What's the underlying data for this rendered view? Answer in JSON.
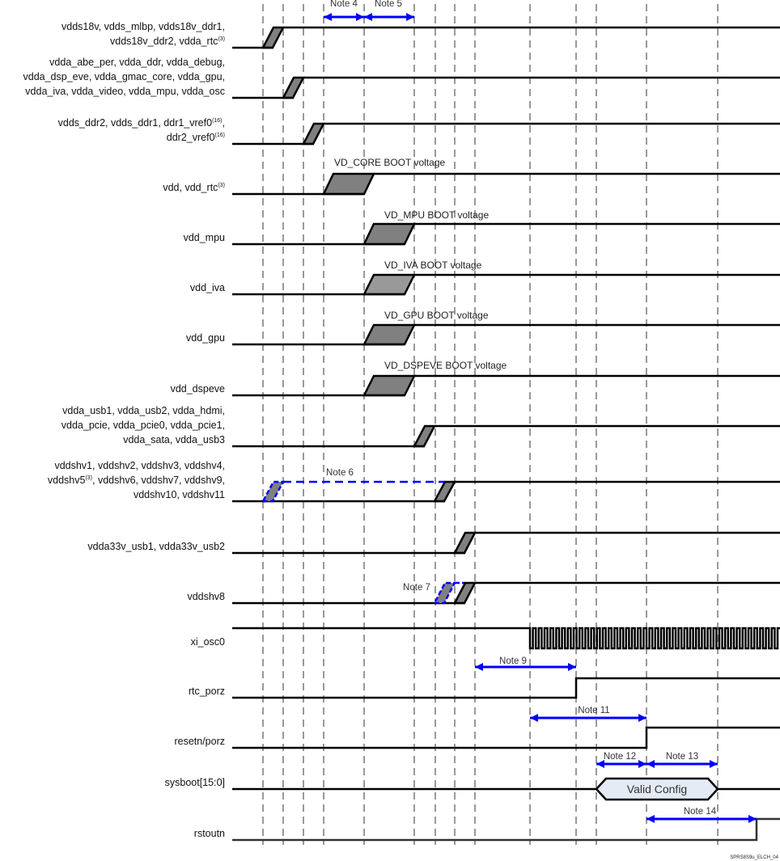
{
  "signals": [
    {
      "lines": [
        {
          "text": "vdds18v, vdds_mlbp, vdds18v_ddr1,"
        },
        {
          "text": "vdds18v_ddr2, vdda_rtc",
          "sup": "(3)"
        }
      ]
    },
    {
      "lines": [
        {
          "text": "vdda_abe_per, vdda_ddr, vdda_debug,"
        },
        {
          "text": "vdda_dsp_eve, vdda_gmac_core, vdda_gpu,"
        },
        {
          "text": "vdda_iva, vdda_video, vdda_mpu, vdda_osc"
        }
      ]
    },
    {
      "lines": [
        {
          "text": "vdds_ddr2, vdds_ddr1, ddr1_vref0",
          "sup": "(16)",
          "after": ","
        },
        {
          "text": "ddr2_vref0",
          "sup": "(16)"
        }
      ]
    },
    {
      "lines": [
        {
          "text": "vdd, vdd_rtc",
          "sup": "(3)"
        }
      ],
      "level": "VD_CORE BOOT voltage"
    },
    {
      "lines": [
        {
          "text": "vdd_mpu"
        }
      ],
      "level": "VD_MPU BOOT voltage"
    },
    {
      "lines": [
        {
          "text": "vdd_iva"
        }
      ],
      "level": "VD_IVA BOOT voltage"
    },
    {
      "lines": [
        {
          "text": "vdd_gpu"
        }
      ],
      "level": "VD_GPU BOOT voltage"
    },
    {
      "lines": [
        {
          "text": "vdd_dspeve"
        }
      ],
      "level": "VD_DSPEVE BOOT voltage"
    },
    {
      "lines": [
        {
          "text": "vdda_usb1, vdda_usb2, vdda_hdmi,"
        },
        {
          "text": "vdda_pcie, vdda_pcie0, vdda_pcie1,"
        },
        {
          "text": "vdda_sata, vdda_usb3"
        }
      ]
    },
    {
      "lines": [
        {
          "text": "vddshv1, vddshv2, vddshv3, vddshv4,"
        },
        {
          "text": "vddshv5",
          "sup": "(3)",
          "after": ", vddshv6, vddshv7, vddshv9,"
        },
        {
          "text": "vddshv10, vddshv11"
        }
      ]
    },
    {
      "lines": [
        {
          "text": "vdda33v_usb1, vdda33v_usb2"
        }
      ]
    },
    {
      "lines": [
        {
          "text": "vddshv8"
        }
      ]
    },
    {
      "lines": [
        {
          "text": "xi_osc0"
        }
      ]
    },
    {
      "lines": [
        {
          "text": "rtc_porz"
        }
      ]
    },
    {
      "lines": [
        {
          "text": "resetn/porz"
        }
      ]
    },
    {
      "lines": [
        {
          "text": "sysboot[15:0]"
        }
      ],
      "bus_value": "Valid Config"
    },
    {
      "lines": [
        {
          "text": "rstoutn"
        }
      ]
    }
  ],
  "notes": [
    "Note 4",
    "Note 5",
    "Note 6",
    "Note 7",
    "Note 9",
    "Note 11",
    "Note 12",
    "Note 13",
    "Note 14"
  ],
  "figure_id": "SPRS8S9u_ELCH_04",
  "colors": {
    "signal": "#000000",
    "ramp_fill": "#808080",
    "ramp_fill_light": "#999999",
    "note_arrow": "#0000ff",
    "grid": "#999999",
    "bus_fill": "#e4ebf5"
  }
}
